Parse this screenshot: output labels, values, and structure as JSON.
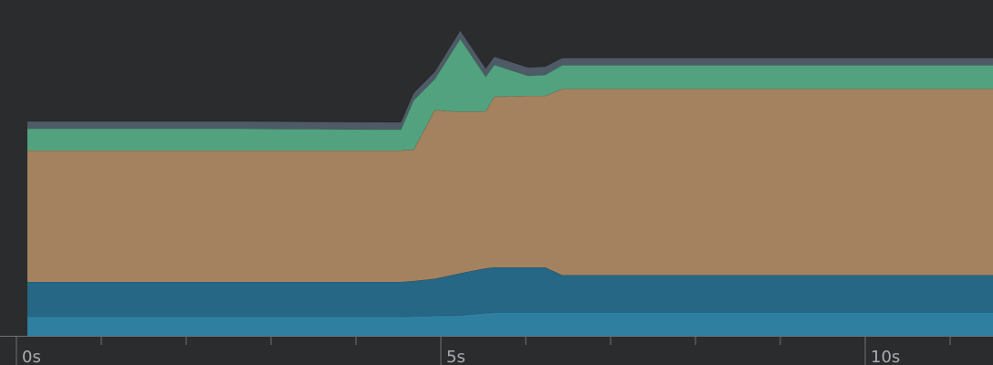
{
  "chart_data": {
    "type": "area",
    "stacked": true,
    "xlabel": "",
    "ylabel": "",
    "xlim": [
      0,
      11.45
    ],
    "ylim": [
      0,
      380
    ],
    "grid": false,
    "legend": "none",
    "x_ticks": {
      "major": [
        0,
        5,
        10
      ],
      "major_labels": [
        "0s",
        "5s",
        "10s"
      ],
      "minor": [
        1,
        2,
        3,
        4,
        6,
        7,
        8,
        9,
        11
      ]
    },
    "x": [
      0,
      2.0,
      2.5,
      4.2,
      4.4,
      4.55,
      4.8,
      5.1,
      5.4,
      5.5,
      5.9,
      6.1,
      6.3,
      11.45
    ],
    "series": [
      {
        "color": "#2f7fa1",
        "values": [
          21,
          21,
          21,
          21,
          21,
          21.5,
          22,
          22.5,
          25,
          25.5,
          25.5,
          25.5,
          25.5,
          25.5
        ]
      },
      {
        "color": "#256784",
        "values": [
          38,
          38,
          38,
          38,
          38,
          38.5,
          40.5,
          46,
          49,
          49.5,
          49.5,
          49.5,
          41,
          41
        ]
      },
      {
        "color": "#a5825f",
        "values": [
          144,
          144,
          144,
          144,
          144,
          144,
          185,
          177,
          172,
          187,
          188,
          188,
          204,
          204
        ]
      },
      {
        "color": "#52a280",
        "values": [
          24,
          24,
          24,
          23,
          23,
          54,
          34,
          80,
          38,
          35,
          22,
          23,
          26,
          26
        ]
      },
      {
        "color": "#4e5b66",
        "values": [
          8,
          8,
          8,
          8,
          8,
          8,
          8,
          9,
          9,
          9,
          9,
          9,
          8,
          8
        ]
      }
    ]
  }
}
